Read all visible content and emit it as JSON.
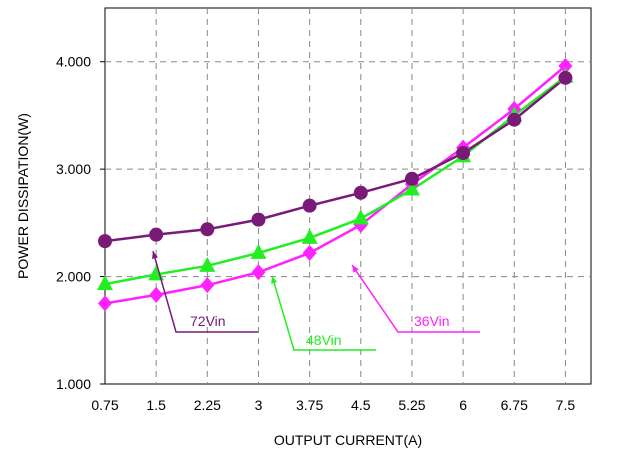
{
  "chart_data": {
    "type": "line",
    "title": "",
    "xlabel": "OUTPUT CURRENT(A)",
    "ylabel": "POWER DISSIPATION(W)",
    "x": [
      0.75,
      1.5,
      2.25,
      3,
      3.75,
      4.5,
      5.25,
      6,
      6.75,
      7.5
    ],
    "x_tick_labels": [
      "0.75",
      "1.5",
      "2.25",
      "3",
      "3.75",
      "4.5",
      "5.25",
      "6",
      "6.75",
      "7.5"
    ],
    "ylim": [
      1.0,
      4.5
    ],
    "y_ticks": [
      1.0,
      2.0,
      3.0,
      4.0
    ],
    "y_tick_labels": [
      "1.000",
      "2.000",
      "3.000",
      "4.000"
    ],
    "grid": true,
    "series": [
      {
        "name": "72Vin",
        "color": "#7a1a78",
        "marker": "circle",
        "values": [
          2.33,
          2.39,
          2.44,
          2.53,
          2.66,
          2.78,
          2.91,
          3.15,
          3.46,
          3.85
        ]
      },
      {
        "name": "48Vin",
        "color": "#22ee22",
        "marker": "triangle",
        "values": [
          1.93,
          2.02,
          2.1,
          2.22,
          2.36,
          2.54,
          2.81,
          3.12,
          3.5,
          3.86
        ]
      },
      {
        "name": "36Vin",
        "color": "#ff22ff",
        "marker": "diamond",
        "values": [
          1.75,
          1.83,
          1.92,
          2.04,
          2.22,
          2.48,
          2.86,
          3.2,
          3.56,
          3.96
        ]
      }
    ],
    "annotations": [
      {
        "text": "72Vin",
        "series": "72Vin"
      },
      {
        "text": "48Vin",
        "series": "48Vin"
      },
      {
        "text": "36Vin",
        "series": "36Vin"
      }
    ]
  }
}
